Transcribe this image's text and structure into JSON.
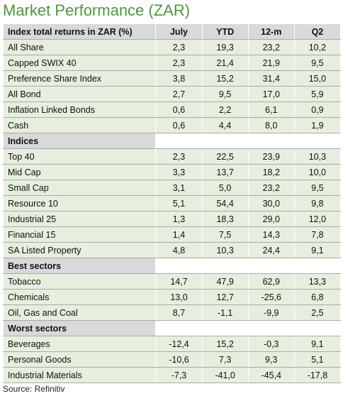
{
  "title": "Market Performance (ZAR)",
  "table": {
    "header": [
      "Index total returns in ZAR (%)",
      "July",
      "YTD",
      "12-m",
      "Q2"
    ],
    "rows": [
      [
        "All Share",
        "2,3",
        "19,3",
        "23,2",
        "10,2"
      ],
      [
        "Capped SWIX 40",
        "2,3",
        "21,4",
        "21,9",
        "9,5"
      ],
      [
        "Preference Share Index",
        "3,8",
        "15,2",
        "31,4",
        "15,0"
      ],
      [
        "All Bond",
        "2,7",
        "9,5",
        "17,0",
        "5,9"
      ],
      [
        "Inflation Linked Bonds",
        "0,6",
        "2,2",
        "6,1",
        "0,9"
      ],
      [
        "Cash",
        "0,6",
        "4,4",
        "8,0",
        "1,9"
      ],
      [
        "Indices"
      ],
      [
        "Top 40",
        "2,3",
        "22,5",
        "23,9",
        "10,3"
      ],
      [
        "Mid Cap",
        "3,3",
        "13,7",
        "18,2",
        "10,0"
      ],
      [
        "Small Cap",
        "3,1",
        "5,0",
        "23,2",
        "9,5"
      ],
      [
        "Resource 10",
        "5,1",
        "54,4",
        "30,0",
        "9,8"
      ],
      [
        "Industrial 25",
        "1,3",
        "18,3",
        "29,0",
        "12,0"
      ],
      [
        "Financial 15",
        "1,4",
        "7,5",
        "14,3",
        "7,8"
      ],
      [
        "SA Listed Property",
        "4,8",
        "10,3",
        "24,4",
        "9,1"
      ],
      [
        "Best sectors"
      ],
      [
        "Tobacco",
        "14,7",
        "47,9",
        "62,9",
        "13,3"
      ],
      [
        "Chemicals",
        "13,0",
        "12,7",
        "-25,6",
        "6,8"
      ],
      [
        "Oil, Gas and Coal",
        "8,7",
        "-1,1",
        "-9,9",
        "2,5"
      ],
      [
        "Worst sectors"
      ],
      [
        "Beverages",
        "-12,4",
        "15,2",
        "-0,3",
        "9,1"
      ],
      [
        "Personal Goods",
        "-10,6",
        "7,3",
        "9,3",
        "5,1"
      ],
      [
        "Industrial Materials",
        "-7,3",
        "-41,0",
        "-45,4",
        "-17,8"
      ]
    ]
  },
  "source": "Source: Refinitiv"
}
